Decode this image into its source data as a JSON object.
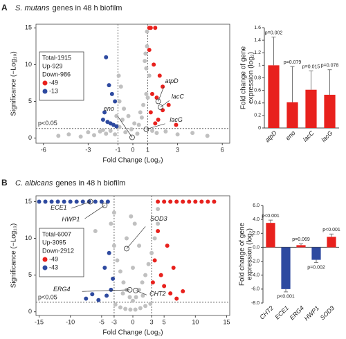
{
  "chart_data": [
    {
      "type": "scatter",
      "panel": "A",
      "title_species": "S. mutans",
      "title": "genes in 48 h biofilm",
      "xlabel": "Fold Change (Log₂)",
      "ylabel": "Significance (−Log₁₀)",
      "xlim": [
        -6.5,
        6.5
      ],
      "xticks": [
        -6,
        -3,
        -1,
        0,
        1,
        3,
        6
      ],
      "ylim": [
        -0.7,
        15.5
      ],
      "yticks": [
        0,
        5,
        10,
        15
      ],
      "thresholds": {
        "x": [
          -1,
          1
        ],
        "y": 1.3,
        "label": "p<0.05"
      },
      "summary": [
        "Total-1915",
        "Up-929",
        "Down-986"
      ],
      "series": [
        {
          "color": "#c0c0c0",
          "x": [
            -5,
            -4.3,
            -3.5,
            -3,
            -2.6,
            -2.2,
            -1.8,
            -1.5,
            -1.2,
            -0.9,
            -0.7,
            -0.5,
            -0.3,
            -0.1,
            0.1,
            0.3,
            0.5,
            0.7,
            0.9,
            1.1,
            1.3,
            0.8,
            0.6,
            -0.6,
            -0.8,
            0.95,
            0.9,
            0.85,
            0.95,
            1.0,
            -0.95,
            -0.9,
            2.2,
            3.0,
            4.0,
            5.0,
            -2.0,
            -1.1,
            1.6,
            0.4
          ],
          "y": [
            0.3,
            0.5,
            0.2,
            0.8,
            0.4,
            0.9,
            0.6,
            1.0,
            0.5,
            1.5,
            2.5,
            0.8,
            3.0,
            1.2,
            2.0,
            0.6,
            3.5,
            4.5,
            6.0,
            8.5,
            1.0,
            10.5,
            2.8,
            4.0,
            7.0,
            12.5,
            9.5,
            11.5,
            14.5,
            5.5,
            8.5,
            5.0,
            0.9,
            0.5,
            0.7,
            0.3,
            1.1,
            3.0,
            0.7,
            1.8
          ]
        },
        {
          "name": "-49",
          "color": "#e8211d",
          "x": [
            1.1,
            1.2,
            1.5,
            1.4,
            1.8,
            2.0,
            1.3,
            1.6,
            2.4,
            2.0,
            1.7,
            1.2,
            1.5,
            2.9,
            1.1
          ],
          "y": [
            15,
            15,
            15,
            10,
            8.5,
            7.0,
            6.0,
            5.5,
            4.5,
            3.8,
            2.5,
            3.5,
            2.0,
            1.8,
            12.0
          ]
        },
        {
          "name": "-13",
          "color": "#2e4aa0",
          "x": [
            -1.8,
            -1.6,
            -1.4,
            -1.2,
            -2.0,
            -1.7,
            -1.3,
            -1.5,
            -1.1,
            -1.9
          ],
          "y": [
            11,
            7.2,
            6.0,
            5.0,
            2.5,
            2.2,
            1.8,
            2.0,
            1.6,
            3.5
          ]
        }
      ],
      "annotations": [
        {
          "text": "atpD",
          "x": 1.7,
          "y": 5.0
        },
        {
          "text": "eno",
          "x": -0.05,
          "y": 0.1
        },
        {
          "text": "lacC",
          "x": 1.85,
          "y": 4.2
        },
        {
          "text": "lacG",
          "x": 0.9,
          "y": 1.2
        }
      ]
    },
    {
      "type": "bar",
      "ylabel": [
        "Fold change of gene",
        "expression (log₂)"
      ],
      "categories": [
        "atpD",
        "eno",
        "lacC",
        "lacG"
      ],
      "values": [
        1.0,
        0.41,
        0.61,
        0.53
      ],
      "errors": [
        0.45,
        0.57,
        0.3,
        0.4
      ],
      "p_labels": [
        "p=0.002",
        "p=0.079",
        "p=0.015",
        "p=0.078"
      ],
      "color": "#e8211d",
      "ylim": [
        0,
        1.6
      ],
      "yticks": [
        0,
        0.2,
        0.4,
        0.6,
        0.8,
        1,
        1.2,
        1.4,
        1.6
      ]
    },
    {
      "type": "scatter",
      "panel": "B",
      "title_species": "C. albicans",
      "title": "genes in 48 h biofilm",
      "xlabel": "Fold Change (Log₂)",
      "ylabel": "Significance (−Log₁₀)",
      "xlim": [
        -15.5,
        15.5
      ],
      "xticks": [
        -15,
        -10,
        -5,
        -3,
        0,
        3,
        5,
        10,
        15
      ],
      "ylim": [
        -0.5,
        15.8
      ],
      "yticks": [
        0,
        5,
        10,
        15
      ],
      "thresholds": {
        "x": [
          -3,
          3
        ],
        "y": 1.3,
        "label": "p<0.05"
      },
      "summary": [
        "Total-6007",
        "Up-3095",
        "Down-2912"
      ],
      "series": [
        {
          "color": "#c0c0c0",
          "x": [
            -14,
            -12,
            -10,
            -8,
            -6,
            -5,
            -4,
            -3.5,
            -3,
            -2.5,
            -2,
            -1.5,
            -1,
            -0.5,
            0,
            0.5,
            1,
            1.5,
            2,
            2.5,
            3,
            3.5,
            4,
            5,
            6,
            8,
            -2.8,
            -2,
            -1.2,
            -0.4,
            0.4,
            1.2,
            2,
            2.8,
            -1,
            1,
            -0.3,
            0.3,
            -6,
            -3,
            4,
            7,
            10,
            13,
            -9,
            0,
            -1.6,
            1.6
          ],
          "y": [
            15,
            15,
            15,
            15,
            15,
            15,
            15,
            12,
            9,
            7,
            5.5,
            4,
            3,
            2,
            1.5,
            2,
            3,
            4,
            5,
            6.5,
            8,
            10,
            12,
            15,
            15,
            15,
            1.0,
            0.6,
            0.4,
            0.3,
            0.3,
            0.5,
            0.8,
            1.1,
            10,
            9,
            13,
            12,
            11,
            13.5,
            14,
            15,
            15,
            15,
            15,
            6,
            2.5,
            2.2
          ]
        },
        {
          "name": "-49",
          "color": "#e8211d",
          "x": [
            4,
            5,
            6,
            7,
            8,
            9,
            10,
            11,
            12,
            13,
            3.5,
            4.5,
            5,
            6,
            7,
            8,
            5.5,
            4,
            6.5,
            3.2
          ],
          "y": [
            15,
            15,
            15,
            15,
            15,
            15,
            15,
            15,
            15,
            15,
            7,
            5,
            3.5,
            2.5,
            1.8,
            2.8,
            9,
            11,
            6,
            4
          ]
        },
        {
          "name": "-43",
          "color": "#2e4aa0",
          "x": [
            -15,
            -14,
            -13,
            -12,
            -11,
            -10,
            -9,
            -8,
            -7,
            -6,
            -5,
            -4,
            -3.5,
            -4.2,
            -5.5,
            -6.5,
            -3.2,
            -7.5,
            -4.5,
            -3.8
          ],
          "y": [
            15,
            15,
            15,
            15,
            15,
            15,
            15,
            15,
            15,
            15,
            15,
            15,
            3,
            2.2,
            1.6,
            2.4,
            4.5,
            1.8,
            6,
            8
          ]
        }
      ],
      "annotations": [
        {
          "text": "ECE1",
          "x": -6.8,
          "y": 15
        },
        {
          "text": "HWP1",
          "x": -4.5,
          "y": 14.5
        },
        {
          "text": "SOD3",
          "x": -1,
          "y": 8.6
        },
        {
          "text": "ERG4",
          "x": -0.5,
          "y": 3.0
        },
        {
          "text": "CHT2",
          "x": 0.45,
          "y": 2.9
        }
      ]
    },
    {
      "type": "bar",
      "ylabel": [
        "Fold change of gene",
        "expression (log₂)"
      ],
      "categories": [
        "CHT2",
        "ECE1",
        "ERG4",
        "HWP1",
        "SOD3"
      ],
      "values": [
        3.5,
        -6.0,
        0.3,
        -1.8,
        1.5
      ],
      "errors": [
        0.4,
        0.4,
        0.2,
        0.4,
        0.4
      ],
      "p_labels": [
        "p<0.001",
        "p<0.001",
        "p=0.069",
        "p=0.002",
        "p<0.001"
      ],
      "colors": [
        "#e8211d",
        "#2e4aa0",
        "#e8211d",
        "#2e4aa0",
        "#e8211d"
      ],
      "ylim": [
        -8,
        6
      ],
      "yticks": [
        {
          "value": -8,
          "label": "-8.0"
        },
        {
          "value": -6,
          "label": "-6.0"
        },
        {
          "value": -4,
          "label": "-4.0"
        },
        {
          "value": -2,
          "label": "-2.0"
        },
        {
          "value": 0,
          "label": "0.0"
        },
        {
          "value": 2,
          "label": "2.0"
        },
        {
          "value": 4,
          "label": "4.0"
        },
        {
          "value": 6,
          "label": "6.0"
        }
      ]
    }
  ]
}
